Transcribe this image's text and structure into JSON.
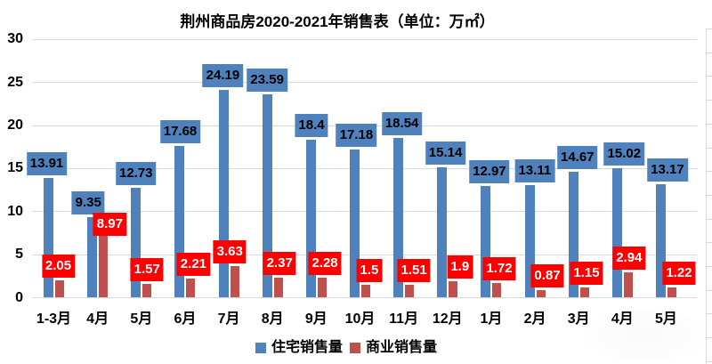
{
  "title": "荆州商品房2020-2021年销售表（单位：万㎡）",
  "chart_data": {
    "type": "bar",
    "categories": [
      "1-3月",
      "4月",
      "5月",
      "6月",
      "7月",
      "8月",
      "9月",
      "10月",
      "11月",
      "12月",
      "1月",
      "2月",
      "3月",
      "4月",
      "5月"
    ],
    "series": [
      {
        "name": "住宅销售量",
        "color": "#4f81bd",
        "label_bg": "#4f81bd",
        "label_text_color": "#000000",
        "values": [
          13.91,
          9.35,
          12.73,
          17.68,
          24.19,
          23.59,
          18.4,
          17.18,
          18.54,
          15.14,
          12.97,
          13.11,
          14.67,
          15.02,
          13.17
        ]
      },
      {
        "name": "商业销售量",
        "color": "#c0504d",
        "label_bg": "#fe0000",
        "label_text_color": "#ffffff",
        "values": [
          2.05,
          8.97,
          1.57,
          2.21,
          3.63,
          2.37,
          2.28,
          1.5,
          1.51,
          1.9,
          1.72,
          0.87,
          1.15,
          2.94,
          1.22
        ]
      }
    ],
    "ylabel": "",
    "xlabel": "",
    "ylim": [
      0,
      30
    ],
    "yticks": [
      0,
      5,
      10,
      15,
      20,
      25,
      30
    ],
    "grid": true,
    "legend_position": "bottom"
  }
}
